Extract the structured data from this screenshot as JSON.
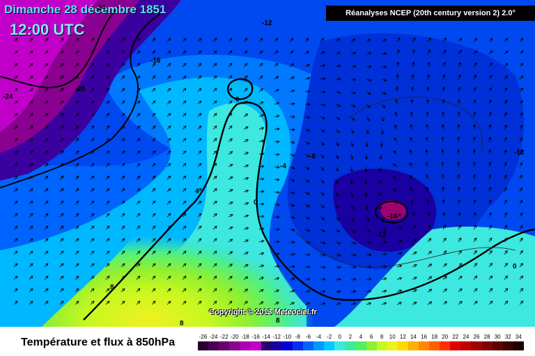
{
  "header": {
    "date": "Dimanche 28 décembre 1851",
    "time": "12:00 UTC",
    "source": "Réanalyses NCEP (20th century version 2) 2.0°"
  },
  "map": {
    "copyright": "Copyright © 2013 Meteociel.fr",
    "contour_labels": [
      "-24",
      "-16",
      "-12",
      "-20",
      "-24",
      "0",
      "-12",
      "-4",
      "-8",
      "4",
      "0",
      "-16",
      "-12",
      "0",
      "8",
      "8",
      "8"
    ]
  },
  "footer": {
    "product_title": "Température et flux à 850hPa",
    "legend": {
      "labels": [
        "-26",
        "-24",
        "-22",
        "-20",
        "-18",
        "-16",
        "-14",
        "-12",
        "-10",
        "-8",
        "-6",
        "-4",
        "-2",
        "0",
        "2",
        "4",
        "6",
        "8",
        "10",
        "12",
        "14",
        "16",
        "18",
        "20",
        "22",
        "24",
        "26",
        "28",
        "30",
        "32",
        "34"
      ],
      "colors": [
        "#2a0030",
        "#4a0050",
        "#6a006e",
        "#8a0090",
        "#a800b0",
        "#c000c8",
        "#2a0070",
        "#1a00a0",
        "#0000d8",
        "#0030f0",
        "#0064ff",
        "#0098ff",
        "#00c8ff",
        "#3ce8e0",
        "#40e8a0",
        "#50f060",
        "#90f030",
        "#c8f820",
        "#f0f020",
        "#ffd800",
        "#ffb000",
        "#ff8800",
        "#ff6000",
        "#ff3000",
        "#e00000",
        "#c00000",
        "#a00000",
        "#800000",
        "#600000",
        "#400000",
        "#200000"
      ]
    }
  }
}
